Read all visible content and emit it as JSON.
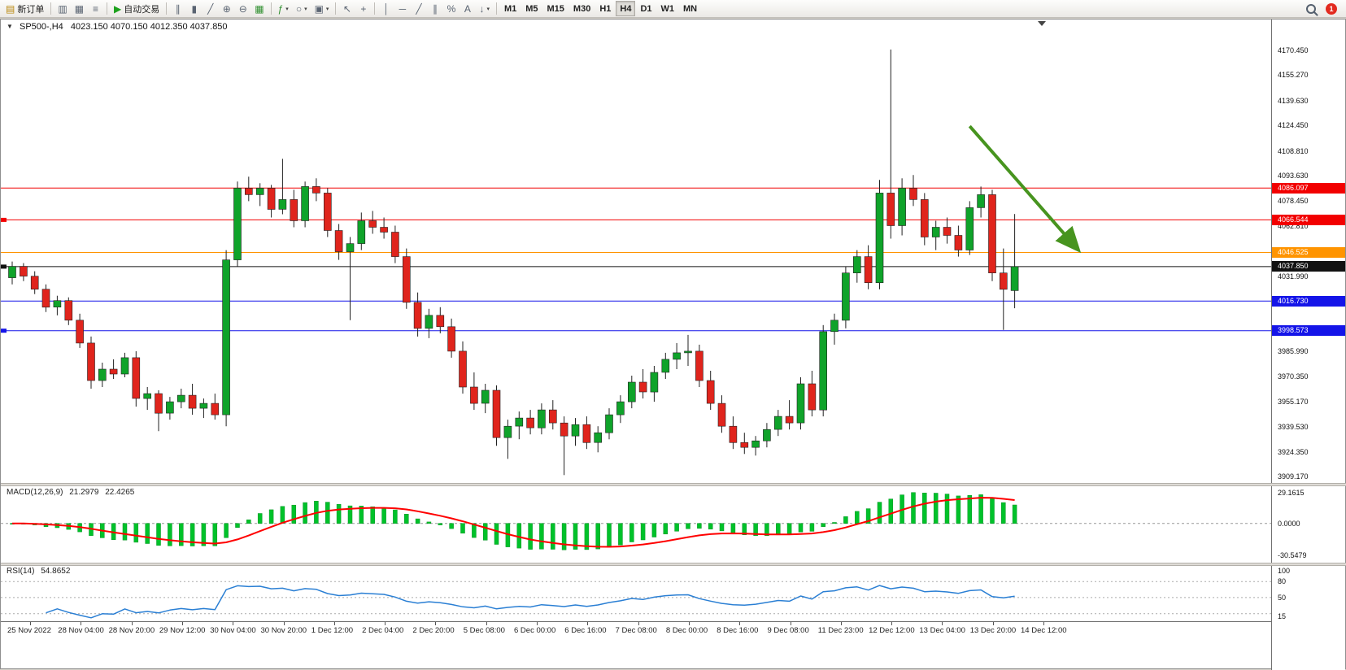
{
  "toolbar": {
    "alert_badge": "1",
    "items": [
      {
        "name": "new-order-button",
        "label": "新订单",
        "glyph": "▤",
        "glyph_color": "#b8860b"
      },
      {
        "type": "sep"
      },
      {
        "name": "charts-button",
        "glyph": "▥"
      },
      {
        "name": "profiles-button",
        "glyph": "▦"
      },
      {
        "name": "market-watch-button",
        "glyph": "≡"
      },
      {
        "type": "sep"
      },
      {
        "name": "auto-trading-button",
        "label": "自动交易",
        "glyph": "▶",
        "glyph_color": "#1da11d"
      },
      {
        "type": "sep"
      },
      {
        "name": "bar-chart-button",
        "glyph": "∥"
      },
      {
        "name": "candle-chart-button",
        "glyph": "▮"
      },
      {
        "name": "line-chart-button",
        "glyph": "╱"
      },
      {
        "name": "zoom-in-button",
        "glyph": "⊕"
      },
      {
        "name": "zoom-out-button",
        "glyph": "⊖"
      },
      {
        "name": "tile-windows-button",
        "glyph": "▦",
        "glyph_color": "#2f8f2f"
      },
      {
        "type": "sep"
      },
      {
        "name": "indicators-button",
        "glyph": "ƒ",
        "glyph_color": "#2f8f2f",
        "caret": true
      },
      {
        "name": "periods-button",
        "glyph": "○",
        "caret": true
      },
      {
        "name": "templates-button",
        "glyph": "▣",
        "caret": true
      },
      {
        "type": "sep"
      },
      {
        "name": "cursor-button",
        "glyph": "↖"
      },
      {
        "name": "crosshair-button",
        "glyph": "+"
      },
      {
        "type": "sep"
      },
      {
        "name": "vertical-line-button",
        "glyph": "│"
      },
      {
        "name": "horizontal-line-button",
        "glyph": "─"
      },
      {
        "name": "trendline-button",
        "glyph": "╱"
      },
      {
        "name": "channel-button",
        "glyph": "∥"
      },
      {
        "name": "fibonacci-button",
        "glyph": "%"
      },
      {
        "name": "text-button",
        "glyph": "A"
      },
      {
        "name": "arrows-button",
        "glyph": "↓",
        "caret": true
      },
      {
        "type": "sep"
      },
      {
        "name": "timeframe-m1",
        "type": "tf",
        "label": "M1"
      },
      {
        "name": "timeframe-m5",
        "type": "tf",
        "label": "M5"
      },
      {
        "name": "timeframe-m15",
        "type": "tf",
        "label": "M15"
      },
      {
        "name": "timeframe-m30",
        "type": "tf",
        "label": "M30"
      },
      {
        "name": "timeframe-h1",
        "type": "tf",
        "label": "H1"
      },
      {
        "name": "timeframe-h4",
        "type": "tf",
        "label": "H4",
        "active": true
      },
      {
        "name": "timeframe-d1",
        "type": "tf",
        "label": "D1"
      },
      {
        "name": "timeframe-w1",
        "type": "tf",
        "label": "W1"
      },
      {
        "name": "timeframe-mn",
        "type": "tf",
        "label": "MN"
      }
    ]
  },
  "chart": {
    "collapse_marker": "▼",
    "symbol_period": "SP500-,H4",
    "ohlc": "4023.150 4070.150 4012.350 4037.850"
  },
  "chart_data": {
    "type": "candlestick",
    "symbol": "SP500-",
    "timeframe": "H4",
    "current_ohlc": {
      "open": 4023.15,
      "high": 4070.15,
      "low": 4012.35,
      "close": 4037.85
    },
    "price_axis_range": [
      3909.17,
      4170.45
    ],
    "colors": {
      "up": "#0fa32a",
      "down": "#e0241c",
      "wick": "#222222"
    },
    "y_axis": [
      {
        "t": "4170.450",
        "p": 4170.45
      },
      {
        "t": "4155.270",
        "p": 4155.27
      },
      {
        "t": "4139.630",
        "p": 4139.63
      },
      {
        "t": "4124.450",
        "p": 4124.45
      },
      {
        "t": "4108.810",
        "p": 4108.81
      },
      {
        "t": "4093.630",
        "p": 4093.63
      },
      {
        "t": "4078.450",
        "p": 4078.45
      },
      {
        "t": "4062.810",
        "p": 4062.81
      },
      {
        "t": "4031.990",
        "p": 4031.99
      },
      {
        "t": "3985.990",
        "p": 3985.99
      },
      {
        "t": "3970.350",
        "p": 3970.35
      },
      {
        "t": "3955.170",
        "p": 3955.17
      },
      {
        "t": "3939.530",
        "p": 3939.53
      },
      {
        "t": "3924.350",
        "p": 3924.35
      },
      {
        "t": "3909.170",
        "p": 3909.17
      }
    ],
    "price_markers": [
      {
        "t": "4086.097",
        "p": 4086.097,
        "c": "#f20000",
        "left_mark": false
      },
      {
        "t": "4066.544",
        "p": 4066.544,
        "c": "#f20000",
        "left_mark": true
      },
      {
        "t": "4046.525",
        "p": 4046.525,
        "c": "#ff9400",
        "left_mark": false
      },
      {
        "t": "4037.850",
        "p": 4037.85,
        "c": "#111111",
        "left_mark": true
      },
      {
        "t": "4016.730",
        "p": 4016.73,
        "c": "#1414e8",
        "left_mark": false
      },
      {
        "t": "3998.573",
        "p": 3998.573,
        "c": "#1414e8",
        "left_mark": true
      }
    ],
    "candles": [
      [
        4031,
        4041,
        4027,
        4038
      ],
      [
        4038,
        4040,
        4029,
        4032
      ],
      [
        4032,
        4035,
        4021,
        4024
      ],
      [
        4024,
        4027,
        4010,
        4013
      ],
      [
        4013,
        4020,
        4008,
        4017
      ],
      [
        4017,
        4019,
        4002,
        4005
      ],
      [
        4005,
        4009,
        3988,
        3991
      ],
      [
        3991,
        3995,
        3963,
        3968
      ],
      [
        3968,
        3979,
        3964,
        3975
      ],
      [
        3975,
        3981,
        3969,
        3972
      ],
      [
        3972,
        3985,
        3970,
        3982
      ],
      [
        3982,
        3986,
        3952,
        3957
      ],
      [
        3957,
        3964,
        3950,
        3960
      ],
      [
        3960,
        3962,
        3937,
        3948
      ],
      [
        3948,
        3958,
        3944,
        3955
      ],
      [
        3955,
        3963,
        3951,
        3959
      ],
      [
        3959,
        3966,
        3947,
        3951
      ],
      [
        3951,
        3957,
        3945,
        3954
      ],
      [
        3954,
        3960,
        3944,
        3947
      ],
      [
        3947,
        4048,
        3940,
        4042
      ],
      [
        4042,
        4090,
        4038,
        4086
      ],
      [
        4086,
        4093,
        4078,
        4082
      ],
      [
        4082,
        4089,
        4075,
        4086
      ],
      [
        4086,
        4088,
        4068,
        4073
      ],
      [
        4073,
        4104,
        4070,
        4079
      ],
      [
        4079,
        4085,
        4062,
        4066
      ],
      [
        4066,
        4090,
        4062,
        4087
      ],
      [
        4087,
        4092,
        4078,
        4083
      ],
      [
        4083,
        4086,
        4056,
        4060
      ],
      [
        4060,
        4064,
        4042,
        4047
      ],
      [
        4047,
        4056,
        4005,
        4052
      ],
      [
        4052,
        4071,
        4048,
        4066
      ],
      [
        4066,
        4072,
        4058,
        4062
      ],
      [
        4062,
        4068,
        4055,
        4059
      ],
      [
        4059,
        4063,
        4040,
        4044
      ],
      [
        4044,
        4049,
        4012,
        4016
      ],
      [
        4016,
        4022,
        3995,
        4000
      ],
      [
        4000,
        4012,
        3994,
        4008
      ],
      [
        4008,
        4013,
        3997,
        4001
      ],
      [
        4001,
        4006,
        3982,
        3986
      ],
      [
        3986,
        3992,
        3960,
        3964
      ],
      [
        3964,
        3973,
        3950,
        3954
      ],
      [
        3954,
        3966,
        3948,
        3962
      ],
      [
        3962,
        3965,
        3928,
        3933
      ],
      [
        3933,
        3944,
        3920,
        3940
      ],
      [
        3940,
        3949,
        3932,
        3945
      ],
      [
        3945,
        3950,
        3935,
        3939
      ],
      [
        3939,
        3954,
        3935,
        3950
      ],
      [
        3950,
        3956,
        3938,
        3942
      ],
      [
        3942,
        3946,
        3910,
        3934
      ],
      [
        3934,
        3945,
        3928,
        3941
      ],
      [
        3941,
        3946,
        3926,
        3930
      ],
      [
        3930,
        3940,
        3924,
        3936
      ],
      [
        3936,
        3951,
        3932,
        3947
      ],
      [
        3947,
        3959,
        3942,
        3955
      ],
      [
        3955,
        3971,
        3951,
        3967
      ],
      [
        3967,
        3975,
        3957,
        3961
      ],
      [
        3961,
        3977,
        3955,
        3973
      ],
      [
        3973,
        3985,
        3969,
        3981
      ],
      [
        3981,
        3991,
        3975,
        3985
      ],
      [
        3985,
        3996,
        3977,
        3986
      ],
      [
        3986,
        3990,
        3964,
        3968
      ],
      [
        3968,
        3974,
        3950,
        3954
      ],
      [
        3954,
        3959,
        3936,
        3940
      ],
      [
        3940,
        3946,
        3926,
        3930
      ],
      [
        3930,
        3936,
        3923,
        3927
      ],
      [
        3927,
        3934,
        3922,
        3931
      ],
      [
        3931,
        3942,
        3927,
        3938
      ],
      [
        3938,
        3950,
        3934,
        3946
      ],
      [
        3946,
        3956,
        3938,
        3942
      ],
      [
        3942,
        3970,
        3938,
        3966
      ],
      [
        3966,
        3974,
        3946,
        3950
      ],
      [
        3950,
        4002,
        3946,
        3998
      ],
      [
        3998,
        4009,
        3990,
        4005
      ],
      [
        4005,
        4038,
        4000,
        4034
      ],
      [
        4034,
        4048,
        4028,
        4044
      ],
      [
        4044,
        4051,
        4024,
        4028
      ],
      [
        4028,
        4091,
        4024,
        4083
      ],
      [
        4083,
        4171,
        4055,
        4063
      ],
      [
        4063,
        4092,
        4057,
        4086
      ],
      [
        4086,
        4094,
        4075,
        4079
      ],
      [
        4079,
        4083,
        4051,
        4056
      ],
      [
        4056,
        4066,
        4048,
        4062
      ],
      [
        4062,
        4068,
        4052,
        4057
      ],
      [
        4057,
        4063,
        4044,
        4048
      ],
      [
        4048,
        4078,
        4045,
        4074
      ],
      [
        4074,
        4087,
        4068,
        4082
      ],
      [
        4082,
        4085,
        4029,
        4034
      ],
      [
        4034,
        4049,
        3999,
        4024
      ],
      [
        4023.15,
        4070.15,
        4012.35,
        4037.85
      ]
    ],
    "annotation_arrow": {
      "from": {
        "bar": 85,
        "price": 4124
      },
      "to": {
        "bar": 94.6,
        "price": 4048.5
      },
      "color": "#47941f",
      "width": 4
    },
    "time_axis": [
      "25 Nov 2022",
      "28 Nov 04:00",
      "28 Nov 20:00",
      "29 Nov 12:00",
      "30 Nov 04:00",
      "30 Nov 20:00",
      "1 Dec 12:00",
      "2 Dec 04:00",
      "2 Dec 20:00",
      "5 Dec 08:00",
      "6 Dec 00:00",
      "6 Dec 16:00",
      "7 Dec 08:00",
      "8 Dec 00:00",
      "8 Dec 16:00",
      "9 Dec 08:00",
      "11 Dec 23:00",
      "12 Dec 12:00",
      "13 Dec 04:00",
      "13 Dec 20:00",
      "14 Dec 12:00"
    ],
    "macd": {
      "title": "MACD(12,26,9)",
      "value_main": "21.2979",
      "value_signal": "22.4265",
      "params": [
        12,
        26,
        9
      ],
      "hist_color": "#00c22a",
      "signal_color": "#ff0000",
      "scale_labels": [
        {
          "t": "29.1615",
          "v": 29.1615
        },
        {
          "t": "0.0000",
          "v": 0
        },
        {
          "t": "-30.5479",
          "v": -30.5479
        }
      ]
    },
    "rsi": {
      "title": "RSI(14)",
      "value": "54.8652",
      "period": 14,
      "line_color": "#2a7fd4",
      "levels": [
        80,
        50,
        20
      ],
      "scale_labels": [
        {
          "t": "100",
          "v": 100
        },
        {
          "t": "80",
          "v": 80
        },
        {
          "t": "50",
          "v": 50
        },
        {
          "t": "15",
          "v": 15
        }
      ]
    }
  }
}
